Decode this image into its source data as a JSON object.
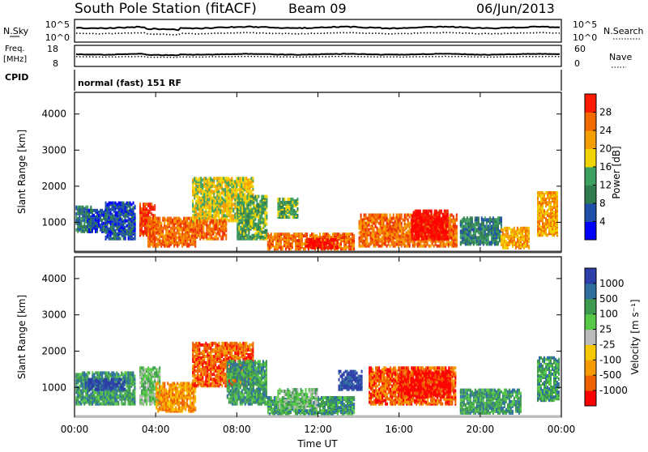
{
  "header": {
    "station": "South Pole Station (fitACF)",
    "beam": "Beam 09",
    "date": "06/Jun/2013"
  },
  "strips": {
    "nsky_label": "N.Sky",
    "nsky_ticks": [
      "10^5",
      "10^0"
    ],
    "nsearch_label": "N.Search",
    "nsearch_ticks": [
      "10^5",
      "10^0"
    ],
    "freq_label_1": "Freq.",
    "freq_label_2": "[MHz]",
    "freq_ticks": [
      "18",
      "8"
    ],
    "nave_label": "Nave",
    "nave_ticks": [
      "60",
      "0"
    ],
    "cpid_label": "CPID",
    "cpid_value": "normal (fast) 151 RF"
  },
  "colors": {
    "power_scale": [
      "#0000ff",
      "#1f4fa8",
      "#2f7d4f",
      "#3ea060",
      "#f2d400",
      "#f5a000",
      "#f26a00",
      "#ee2a00",
      "#ff0000"
    ],
    "velocity_scale": [
      "#2c3ea8",
      "#2e6fa0",
      "#3e9a4e",
      "#58c848",
      "#bbbbbb",
      "#f5c800",
      "#f59a00",
      "#ee6000",
      "#ff0000"
    ]
  },
  "chart_data": [
    {
      "type": "heatmap",
      "name": "power",
      "xlabel": "Time UT",
      "ylabel": "Slant Range [km]",
      "x_ticks": [
        "00:00",
        "04:00",
        "08:00",
        "12:00",
        "16:00",
        "20:00",
        "00:00"
      ],
      "y_ticks": [
        "1000",
        "2000",
        "3000",
        "4000"
      ],
      "x_range_hours": [
        0,
        24
      ],
      "y_range_km": [
        180,
        4600
      ],
      "colorbar_label": "Power [dB]",
      "colorbar_ticks": [
        "4",
        "8",
        "12",
        "16",
        "20",
        "24",
        "28"
      ],
      "colorbar_range": [
        0,
        32
      ],
      "echo_regions": [
        {
          "t0": 0.05,
          "t1": 0.8,
          "r0": 700,
          "r1": 1400,
          "level": 2
        },
        {
          "t0": 0.6,
          "t1": 1.5,
          "r0": 700,
          "r1": 1300,
          "level": 1
        },
        {
          "t0": 1.5,
          "t1": 3.0,
          "r0": 500,
          "r1": 1500,
          "level": 1
        },
        {
          "t0": 3.2,
          "t1": 4.0,
          "r0": 600,
          "r1": 1500,
          "level": 7
        },
        {
          "t0": 3.6,
          "t1": 6.0,
          "r0": 300,
          "r1": 1100,
          "level": 6
        },
        {
          "t0": 5.8,
          "t1": 8.8,
          "r0": 1000,
          "r1": 2200,
          "level": 4
        },
        {
          "t0": 6.0,
          "t1": 7.5,
          "r0": 500,
          "r1": 1000,
          "level": 6
        },
        {
          "t0": 8.0,
          "t1": 9.5,
          "r0": 500,
          "r1": 1700,
          "level": 3
        },
        {
          "t0": 9.5,
          "t1": 13.8,
          "r0": 220,
          "r1": 650,
          "level": 6
        },
        {
          "t0": 10.0,
          "t1": 11.0,
          "r0": 1100,
          "r1": 1600,
          "level": 3
        },
        {
          "t0": 11.4,
          "t1": 13.0,
          "r0": 250,
          "r1": 500,
          "level": 8
        },
        {
          "t0": 14.0,
          "t1": 18.8,
          "r0": 300,
          "r1": 1200,
          "level": 6
        },
        {
          "t0": 16.6,
          "t1": 18.4,
          "r0": 500,
          "r1": 1300,
          "level": 8
        },
        {
          "t0": 19.0,
          "t1": 21.0,
          "r0": 350,
          "r1": 1100,
          "level": 2
        },
        {
          "t0": 21.0,
          "t1": 22.4,
          "r0": 250,
          "r1": 800,
          "level": 5
        },
        {
          "t0": 22.8,
          "t1": 23.8,
          "r0": 600,
          "r1": 1800,
          "level": 5
        }
      ]
    },
    {
      "type": "heatmap",
      "name": "velocity",
      "xlabel": "Time UT",
      "ylabel": "Slant Range [km]",
      "x_ticks": [
        "00:00",
        "04:00",
        "08:00",
        "12:00",
        "16:00",
        "20:00",
        "00:00"
      ],
      "y_ticks": [
        "1000",
        "2000",
        "3000",
        "4000"
      ],
      "x_range_hours": [
        0,
        24
      ],
      "y_range_km": [
        180,
        4600
      ],
      "colorbar_label": "Velocity [m s⁻¹]",
      "colorbar_ticks": [
        "1000",
        "500",
        "100",
        "25",
        "-25",
        "-100",
        "-500",
        "-1000"
      ],
      "echo_regions": [
        {
          "t0": 0.05,
          "t1": 3.0,
          "r0": 500,
          "r1": 1400,
          "level": 2
        },
        {
          "t0": 0.5,
          "t1": 2.5,
          "r0": 900,
          "r1": 1200,
          "level": 0
        },
        {
          "t0": 3.2,
          "t1": 4.2,
          "r0": 500,
          "r1": 1500,
          "level": 3
        },
        {
          "t0": 4.0,
          "t1": 6.0,
          "r0": 300,
          "r1": 1100,
          "level": 6
        },
        {
          "t0": 5.8,
          "t1": 8.8,
          "r0": 1000,
          "r1": 2200,
          "level": 7
        },
        {
          "t0": 7.5,
          "t1": 9.5,
          "r0": 500,
          "r1": 1700,
          "level": 2
        },
        {
          "t0": 9.5,
          "t1": 13.8,
          "r0": 220,
          "r1": 700,
          "level": 2
        },
        {
          "t0": 10.0,
          "t1": 12.0,
          "r0": 400,
          "r1": 900,
          "level": 3
        },
        {
          "t0": 13.0,
          "t1": 14.2,
          "r0": 900,
          "r1": 1400,
          "level": 0
        },
        {
          "t0": 14.5,
          "t1": 18.8,
          "r0": 500,
          "r1": 1500,
          "level": 7
        },
        {
          "t0": 16.0,
          "t1": 18.5,
          "r0": 700,
          "r1": 1400,
          "level": 8
        },
        {
          "t0": 19.0,
          "t1": 22.0,
          "r0": 250,
          "r1": 900,
          "level": 2
        },
        {
          "t0": 22.8,
          "t1": 23.9,
          "r0": 600,
          "r1": 1800,
          "level": 2
        }
      ]
    }
  ]
}
